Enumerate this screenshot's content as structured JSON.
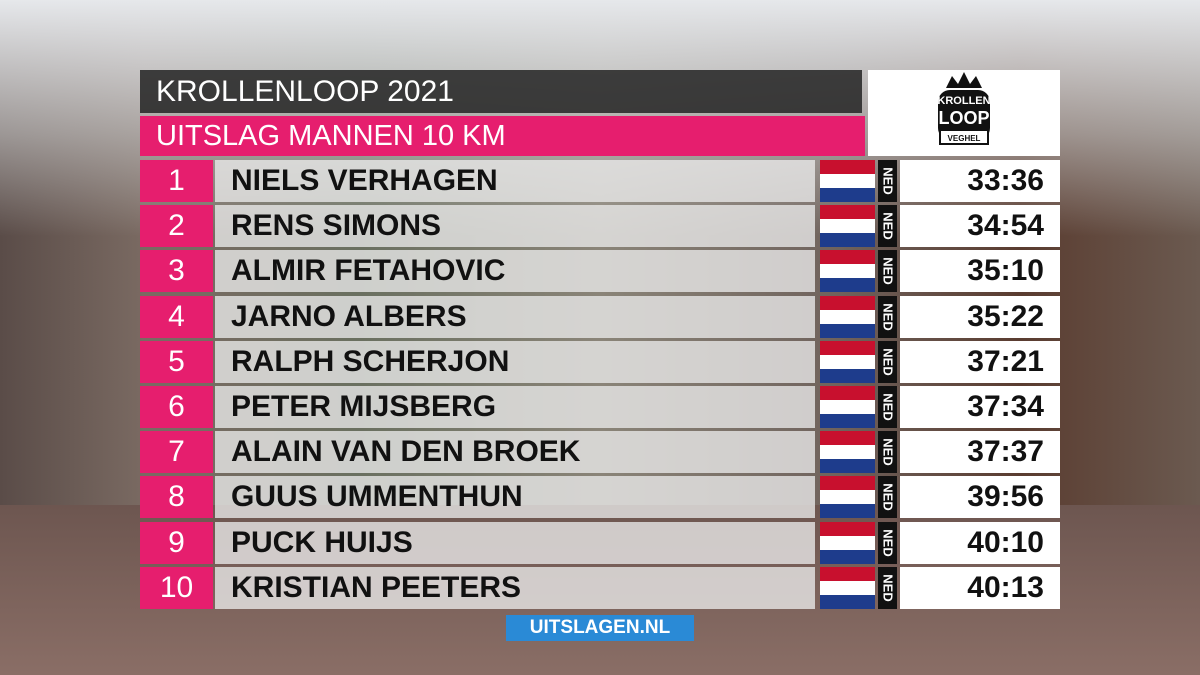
{
  "header": {
    "title": "KROLLENLOOP 2021",
    "subtitle": "UITSLAG MANNEN 10 KM"
  },
  "logo": {
    "top": "KROLLEN",
    "middle": "LOOP",
    "bottom": "VEGHEL"
  },
  "results": {
    "rows": [
      {
        "rank": 1,
        "name": "NIELS VERHAGEN",
        "country": "NED",
        "time": "33:36"
      },
      {
        "rank": 2,
        "name": "RENS SIMONS",
        "country": "NED",
        "time": "34:54"
      },
      {
        "rank": 3,
        "name": "ALMIR FETAHOVIC",
        "country": "NED",
        "time": "35:10"
      },
      {
        "rank": 4,
        "name": "JARNO ALBERS",
        "country": "NED",
        "time": "35:22"
      },
      {
        "rank": 5,
        "name": "RALPH SCHERJON",
        "country": "NED",
        "time": "37:21"
      },
      {
        "rank": 6,
        "name": "PETER MIJSBERG",
        "country": "NED",
        "time": "37:34"
      },
      {
        "rank": 7,
        "name": "ALAIN VAN DEN BROEK",
        "country": "NED",
        "time": "37:37"
      },
      {
        "rank": 8,
        "name": "GUUS UMMENTHUN",
        "country": "NED",
        "time": "39:56"
      },
      {
        "rank": 9,
        "name": "PUCK HUIJS",
        "country": "NED",
        "time": "40:10"
      },
      {
        "rank": 10,
        "name": "KRISTIAN PEETERS",
        "country": "NED",
        "time": "40:13"
      }
    ]
  },
  "footer": {
    "brand": "UITSLAGEN.NL"
  }
}
